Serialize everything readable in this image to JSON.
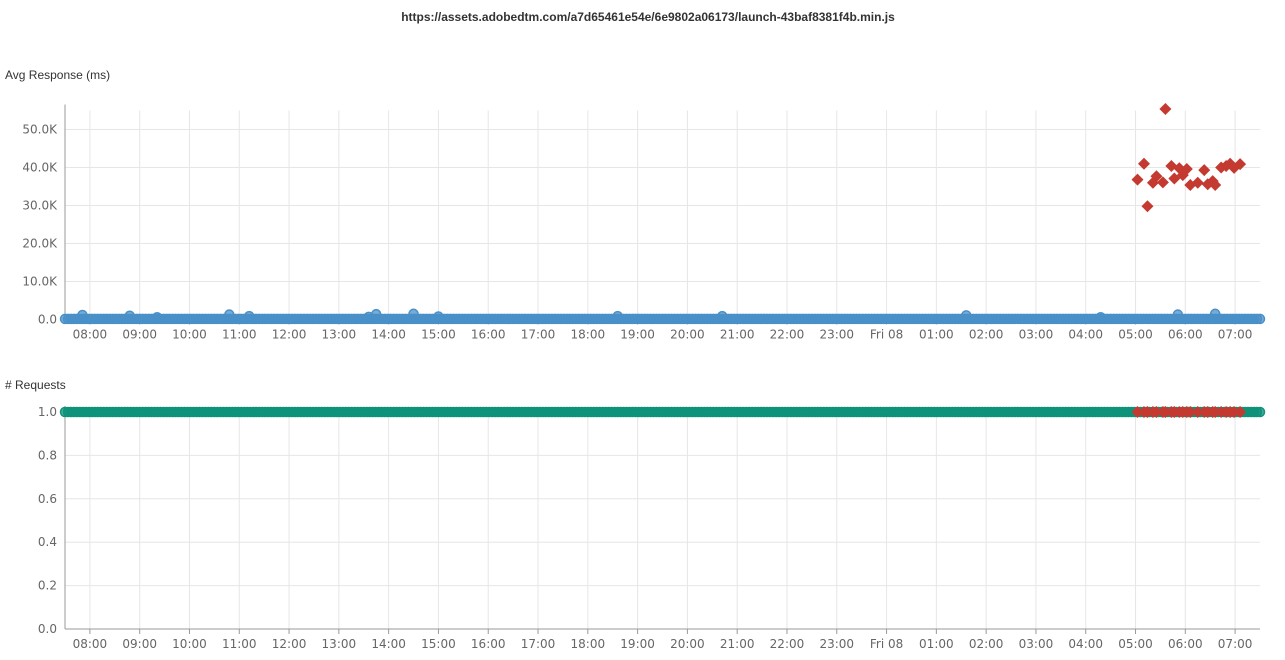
{
  "page": {
    "title": "https://assets.adobedtm.com/a7d65461e54e/6e9802a06173/launch-43baf8381f4b.min.js"
  },
  "colors": {
    "ok_response": "#4a90c8",
    "ok_requests": "#0e9279",
    "error": "#c43a31",
    "grid": "#e6e6e6",
    "axis": "#999999"
  },
  "chart_data": [
    {
      "type": "scatter",
      "ylabel": "Avg Response (ms)",
      "x_ticks": [
        "08:00",
        "09:00",
        "10:00",
        "11:00",
        "12:00",
        "13:00",
        "14:00",
        "15:00",
        "16:00",
        "17:00",
        "18:00",
        "19:00",
        "20:00",
        "21:00",
        "22:00",
        "23:00",
        "Fri 08",
        "01:00",
        "02:00",
        "03:00",
        "04:00",
        "05:00",
        "06:00",
        "07:00"
      ],
      "x_range_hours": [
        7.5,
        31.5
      ],
      "y_ticks": [
        "0.0",
        "10.0K",
        "20.0K",
        "30.0K",
        "40.0K",
        "50.0K"
      ],
      "ylim": [
        0,
        55000
      ],
      "grid": true,
      "series": [
        {
          "marker": "circle",
          "color": "#4a90c8",
          "baseline_y": 150,
          "x_start": 7.5,
          "x_end": 31.5,
          "step": 0.06,
          "bumps": [
            {
              "x": 7.85,
              "y": 1200
            },
            {
              "x": 8.8,
              "y": 1000
            },
            {
              "x": 9.35,
              "y": 600
            },
            {
              "x": 10.8,
              "y": 1300
            },
            {
              "x": 11.2,
              "y": 900
            },
            {
              "x": 13.6,
              "y": 700
            },
            {
              "x": 13.75,
              "y": 1400
            },
            {
              "x": 14.5,
              "y": 1500
            },
            {
              "x": 15.0,
              "y": 800
            },
            {
              "x": 18.6,
              "y": 900
            },
            {
              "x": 20.7,
              "y": 900
            },
            {
              "x": 25.6,
              "y": 1100
            },
            {
              "x": 28.3,
              "y": 600
            },
            {
              "x": 29.85,
              "y": 1300
            },
            {
              "x": 30.6,
              "y": 1500
            }
          ]
        },
        {
          "marker": "diamond",
          "color": "#c43a31",
          "points": [
            {
              "x": 29.04,
              "y": 36800
            },
            {
              "x": 29.17,
              "y": 41000
            },
            {
              "x": 29.24,
              "y": 29800
            },
            {
              "x": 29.35,
              "y": 36000
            },
            {
              "x": 29.42,
              "y": 37700
            },
            {
              "x": 29.55,
              "y": 36100
            },
            {
              "x": 29.6,
              "y": 55400
            },
            {
              "x": 29.72,
              "y": 40400
            },
            {
              "x": 29.78,
              "y": 37100
            },
            {
              "x": 29.88,
              "y": 39800
            },
            {
              "x": 29.95,
              "y": 38000
            },
            {
              "x": 30.03,
              "y": 39600
            },
            {
              "x": 30.1,
              "y": 35400
            },
            {
              "x": 30.25,
              "y": 36000
            },
            {
              "x": 30.38,
              "y": 39300
            },
            {
              "x": 30.45,
              "y": 35600
            },
            {
              "x": 30.55,
              "y": 36400
            },
            {
              "x": 30.6,
              "y": 35400
            },
            {
              "x": 30.72,
              "y": 40000
            },
            {
              "x": 30.82,
              "y": 40400
            },
            {
              "x": 30.9,
              "y": 41000
            },
            {
              "x": 30.98,
              "y": 39900
            },
            {
              "x": 31.1,
              "y": 40900
            }
          ]
        }
      ]
    },
    {
      "type": "scatter",
      "ylabel": "# Requests",
      "x_ticks": [
        "08:00",
        "09:00",
        "10:00",
        "11:00",
        "12:00",
        "13:00",
        "14:00",
        "15:00",
        "16:00",
        "17:00",
        "18:00",
        "19:00",
        "20:00",
        "21:00",
        "22:00",
        "23:00",
        "Fri 08",
        "01:00",
        "02:00",
        "03:00",
        "04:00",
        "05:00",
        "06:00",
        "07:00"
      ],
      "x_range_hours": [
        7.5,
        31.5
      ],
      "y_ticks": [
        "0.0",
        "0.2",
        "0.4",
        "0.6",
        "0.8",
        "1.0"
      ],
      "ylim": [
        0,
        1.0
      ],
      "grid": true,
      "series": [
        {
          "marker": "circle",
          "color": "#0e9279",
          "value": 1.0,
          "x_start": 7.5,
          "x_end": 31.5,
          "step": 0.06
        },
        {
          "marker": "diamond",
          "color": "#c43a31",
          "value": 1.0,
          "x_values": [
            29.04,
            29.17,
            29.24,
            29.35,
            29.42,
            29.55,
            29.6,
            29.72,
            29.78,
            29.88,
            29.95,
            30.03,
            30.1,
            30.25,
            30.38,
            30.45,
            30.55,
            30.6,
            30.72,
            30.82,
            30.9,
            30.98,
            31.1
          ]
        }
      ]
    }
  ]
}
